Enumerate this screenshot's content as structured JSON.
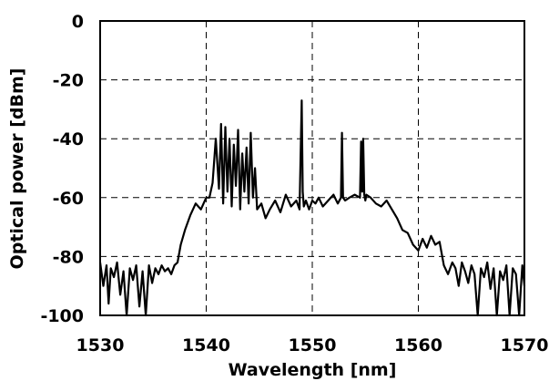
{
  "chart_data": {
    "type": "line",
    "xlabel": "Wavelength [nm]",
    "ylabel": "Optical power [dBm]",
    "xlim": [
      1530,
      1570
    ],
    "ylim": [
      -100,
      0
    ],
    "xticks": [
      "1530",
      "1540",
      "1550",
      "1560",
      "1570"
    ],
    "yticks": [
      "0",
      "-20",
      "-40",
      "-60",
      "-80",
      "-100"
    ],
    "grid": "dashed",
    "line_color": "#000000",
    "series": [
      {
        "x": [
          1530,
          1530.3,
          1530.6,
          1530.8,
          1531,
          1531.3,
          1531.6,
          1531.9,
          1532.2,
          1532.5,
          1532.8,
          1533.1,
          1533.4,
          1533.7,
          1534,
          1534.3,
          1534.6,
          1534.9,
          1535.2,
          1535.5,
          1535.8,
          1536.1,
          1536.4,
          1536.7,
          1537,
          1537.3,
          1537.6,
          1538,
          1538.5,
          1539,
          1539.5,
          1540,
          1540.3,
          1540.6,
          1540.9,
          1541.2,
          1541.4,
          1541.6,
          1541.8,
          1542,
          1542.2,
          1542.4,
          1542.6,
          1542.8,
          1543,
          1543.2,
          1543.4,
          1543.6,
          1543.8,
          1544,
          1544.2,
          1544.4,
          1544.6,
          1544.8,
          1545.2,
          1545.6,
          1546,
          1546.5,
          1547,
          1547.5,
          1548,
          1548.5,
          1548.8,
          1549,
          1549.1,
          1549.2,
          1549.4,
          1549.7,
          1550,
          1550.3,
          1550.6,
          1551,
          1551.5,
          1552,
          1552.4,
          1552.7,
          1552.8,
          1552.9,
          1553.1,
          1553.5,
          1554,
          1554.5,
          1554.6,
          1554.7,
          1554.8,
          1554.9,
          1555,
          1555.1,
          1555.5,
          1556,
          1556.5,
          1557,
          1557.5,
          1558,
          1558.5,
          1559,
          1559.5,
          1560,
          1560.4,
          1560.8,
          1561.2,
          1561.6,
          1562,
          1562.4,
          1562.8,
          1563.2,
          1563.5,
          1563.8,
          1564.1,
          1564.4,
          1564.7,
          1565,
          1565.3,
          1565.6,
          1565.9,
          1566.2,
          1566.5,
          1566.8,
          1567.1,
          1567.4,
          1567.7,
          1568,
          1568.3,
          1568.6,
          1568.9,
          1569.2,
          1569.5,
          1569.8,
          1570
        ],
        "y": [
          -82,
          -90,
          -83,
          -96,
          -84,
          -87,
          -82,
          -93,
          -85,
          -100,
          -84,
          -88,
          -83,
          -97,
          -85,
          -100,
          -83,
          -89,
          -84,
          -86,
          -83,
          -85,
          -84,
          -86,
          -83,
          -82,
          -76,
          -71,
          -66,
          -62,
          -64,
          -60,
          -60,
          -55,
          -40,
          -57,
          -35,
          -62,
          -36,
          -58,
          -40,
          -63,
          -42,
          -56,
          -37,
          -64,
          -45,
          -58,
          -43,
          -62,
          -38,
          -60,
          -50,
          -64,
          -62,
          -67,
          -64,
          -61,
          -65,
          -59,
          -63,
          -61,
          -64,
          -27,
          -58,
          -63,
          -61,
          -64,
          -61,
          -62,
          -60,
          -63,
          -61,
          -59,
          -62,
          -60,
          -38,
          -60,
          -61,
          -60,
          -59,
          -60,
          -41,
          -58,
          -40,
          -59,
          -61,
          -59,
          -60,
          -62,
          -63,
          -61,
          -64,
          -67,
          -71,
          -72,
          -76,
          -78,
          -74,
          -77,
          -73,
          -76,
          -75,
          -83,
          -86,
          -82,
          -84,
          -90,
          -82,
          -85,
          -89,
          -83,
          -86,
          -100,
          -84,
          -87,
          -82,
          -91,
          -84,
          -100,
          -85,
          -88,
          -83,
          -100,
          -84,
          -86,
          -100,
          -83,
          -90
        ]
      }
    ]
  }
}
